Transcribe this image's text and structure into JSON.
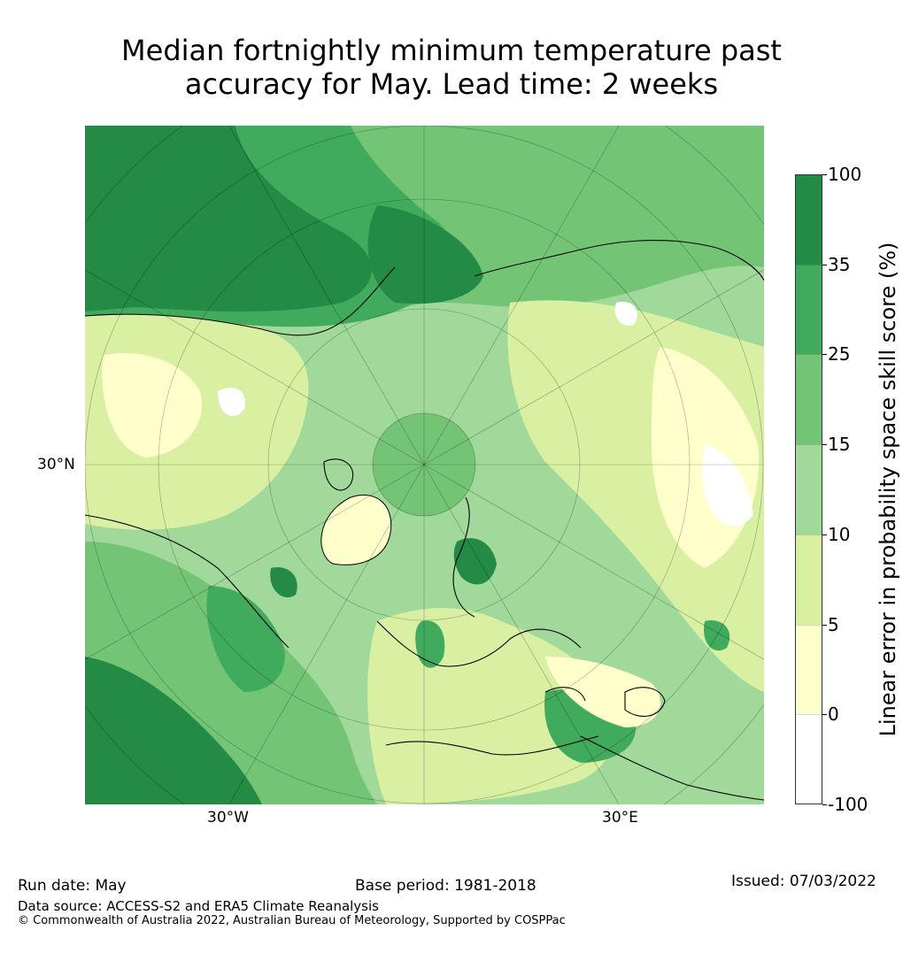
{
  "title_line1": "Median fortnightly minimum temperature past",
  "title_line2": "accuracy for May. Lead time: 2 weeks",
  "map": {
    "lat_label": "30°N",
    "lon_labels": [
      "30°W",
      "30°E"
    ],
    "colors": {
      "ocean_deep": "#238b45",
      "band_25_35": "#41ab5d",
      "band_15_25": "#74c476",
      "band_10_15": "#a1d99b",
      "band_5_10": "#d9f0a3",
      "band_0_5": "#ffffcc",
      "band_neg": "#ffffff",
      "coast": "#000000"
    }
  },
  "colorbar": {
    "label": "Linear error in probability space skill score (%)",
    "ticks": [
      "100",
      "35",
      "25",
      "15",
      "10",
      "5",
      "0",
      "-100"
    ],
    "colors": [
      "#238b45",
      "#41ab5d",
      "#74c476",
      "#a1d99b",
      "#d9f0a3",
      "#ffffcc",
      "#ffffff"
    ]
  },
  "footer": {
    "run_date": "Run date: May",
    "base_period": "Base period: 1981-2018",
    "issued": "Issued: 07/03/2022",
    "data_source": "Data source: ACCESS-S2 and ERA5 Climate Reanalysis",
    "copyright": "© Commonwealth of Australia 2022, Australian Bureau of Meteorology, Supported by COSPPac"
  }
}
